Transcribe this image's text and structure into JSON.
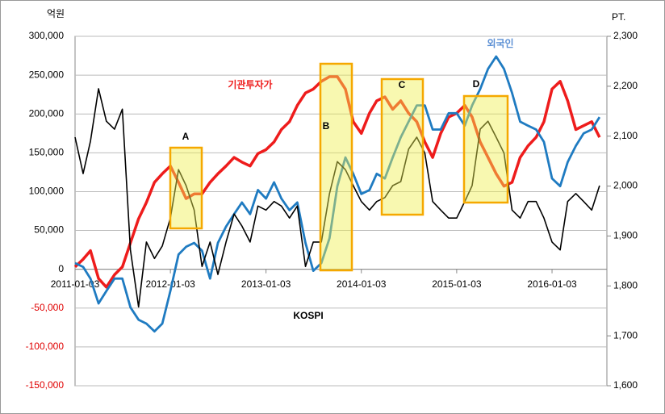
{
  "chart_data": {
    "type": "line",
    "y_unit": "억원",
    "y2_unit": "PT.",
    "x": [
      "2011-01-03",
      "2011-02-03",
      "2011-03-03",
      "2011-04-03",
      "2011-05-03",
      "2011-06-03",
      "2011-07-03",
      "2011-08-03",
      "2011-09-03",
      "2011-10-03",
      "2011-11-03",
      "2011-12-03",
      "2012-01-03",
      "2012-02-03",
      "2012-03-03",
      "2012-04-03",
      "2012-05-03",
      "2012-06-03",
      "2012-07-03",
      "2012-08-03",
      "2012-09-03",
      "2012-10-03",
      "2012-11-03",
      "2012-12-03",
      "2013-01-03",
      "2013-02-03",
      "2013-03-03",
      "2013-04-03",
      "2013-05-03",
      "2013-06-03",
      "2013-07-03",
      "2013-08-03",
      "2013-09-03",
      "2013-10-03",
      "2013-11-03",
      "2013-12-03",
      "2014-01-03",
      "2014-02-03",
      "2014-03-03",
      "2014-04-03",
      "2014-05-03",
      "2014-06-03",
      "2014-07-03",
      "2014-08-03",
      "2014-09-03",
      "2014-10-03",
      "2014-11-03",
      "2014-12-03",
      "2015-01-03",
      "2015-02-03",
      "2015-03-03",
      "2015-04-03",
      "2015-05-03",
      "2015-06-03",
      "2015-07-03",
      "2015-08-03",
      "2015-09-03",
      "2015-10-03",
      "2015-11-03",
      "2015-12-03",
      "2016-01-03",
      "2016-02-03",
      "2016-03-03",
      "2016-04-03",
      "2016-05-03",
      "2016-06-03",
      "2016-07-03"
    ],
    "xlim": [
      "2011-01-03",
      "2016-07-31"
    ],
    "xticks": [
      "2011-01-03",
      "2012-01-03",
      "2013-01-03",
      "2014-01-03",
      "2015-01-03",
      "2016-01-03"
    ],
    "ylim": [
      -150000,
      300000
    ],
    "yticks": [
      {
        "value": -150000,
        "label": "-150,000"
      },
      {
        "value": -100000,
        "label": "-100,000"
      },
      {
        "value": -50000,
        "label": "-50,000"
      },
      0,
      {
        "value": 50000,
        "label": "50,000"
      },
      {
        "value": 100000,
        "label": "100,000"
      },
      {
        "value": 150000,
        "label": "150,000"
      },
      {
        "value": 200000,
        "label": "200,000"
      },
      {
        "value": 250000,
        "label": "250,000"
      },
      {
        "value": 300000,
        "label": "300,000"
      }
    ],
    "y2lim": [
      1600,
      2300
    ],
    "y2ticks": [
      {
        "value": 1600,
        "label": "1,600"
      },
      {
        "value": 1700,
        "label": "1,700"
      },
      {
        "value": 1800,
        "label": "1,800"
      },
      {
        "value": 1900,
        "label": "1,900"
      },
      {
        "value": 2000,
        "label": "2,000"
      },
      {
        "value": 2100,
        "label": "2,100"
      },
      {
        "value": 2200,
        "label": "2,200"
      },
      {
        "value": 2300,
        "label": "2,300"
      }
    ],
    "grid": true,
    "series": [
      {
        "name": "기관투자가",
        "color": "#ee1c1c",
        "values": [
          3000,
          13000,
          24000,
          -12000,
          -23000,
          -7000,
          3000,
          34000,
          65000,
          86000,
          112000,
          123000,
          133000,
          112000,
          91000,
          97000,
          97000,
          112000,
          123000,
          133000,
          144000,
          138000,
          133000,
          149000,
          154000,
          164000,
          180000,
          190000,
          211000,
          227000,
          232000,
          242000,
          248000,
          248000,
          232000,
          190000,
          175000,
          201000,
          217000,
          222000,
          206000,
          217000,
          201000,
          190000,
          164000,
          144000,
          175000,
          196000,
          201000,
          211000,
          196000,
          164000,
          144000,
          123000,
          107000,
          112000,
          144000,
          159000,
          170000,
          190000,
          232000,
          242000,
          217000,
          180000,
          185000,
          190000,
          170000
        ]
      },
      {
        "name": "외국인",
        "color": "#1f7bc1",
        "values": [
          8000,
          3000,
          -12000,
          -44000,
          -28000,
          -12000,
          -12000,
          -49000,
          -65000,
          -70000,
          -80000,
          -70000,
          -28000,
          19000,
          29000,
          34000,
          24000,
          -12000,
          34000,
          55000,
          71000,
          86000,
          71000,
          102000,
          91000,
          112000,
          91000,
          76000,
          86000,
          34000,
          -2000,
          8000,
          40000,
          107000,
          144000,
          123000,
          97000,
          102000,
          123000,
          117000,
          144000,
          170000,
          190000,
          211000,
          211000,
          180000,
          180000,
          201000,
          201000,
          185000,
          211000,
          232000,
          258000,
          274000,
          258000,
          227000,
          190000,
          185000,
          180000,
          164000,
          117000,
          107000,
          138000,
          159000,
          175000,
          180000,
          196000
        ]
      },
      {
        "name": "KOSPI",
        "color": "#000000",
        "axis": "y2",
        "values": [
          2098,
          2025,
          2090,
          2195,
          2130,
          2114,
          2154,
          1872,
          1758,
          1888,
          1855,
          1880,
          1936,
          2033,
          2001,
          1952,
          1839,
          1888,
          1823,
          1888,
          1944,
          1920,
          1888,
          1960,
          1952,
          1969,
          1960,
          1936,
          1960,
          1839,
          1888,
          1888,
          1985,
          2049,
          2033,
          2001,
          1969,
          1952,
          1969,
          1977,
          2001,
          2009,
          2074,
          2098,
          2066,
          1969,
          1952,
          1936,
          1936,
          1969,
          2001,
          2114,
          2130,
          2098,
          2066,
          1952,
          1936,
          1969,
          1969,
          1936,
          1888,
          1872,
          1969,
          1985,
          1969,
          1952,
          2001
        ]
      }
    ],
    "annotations": [
      "A",
      "B",
      "C",
      "D"
    ]
  }
}
